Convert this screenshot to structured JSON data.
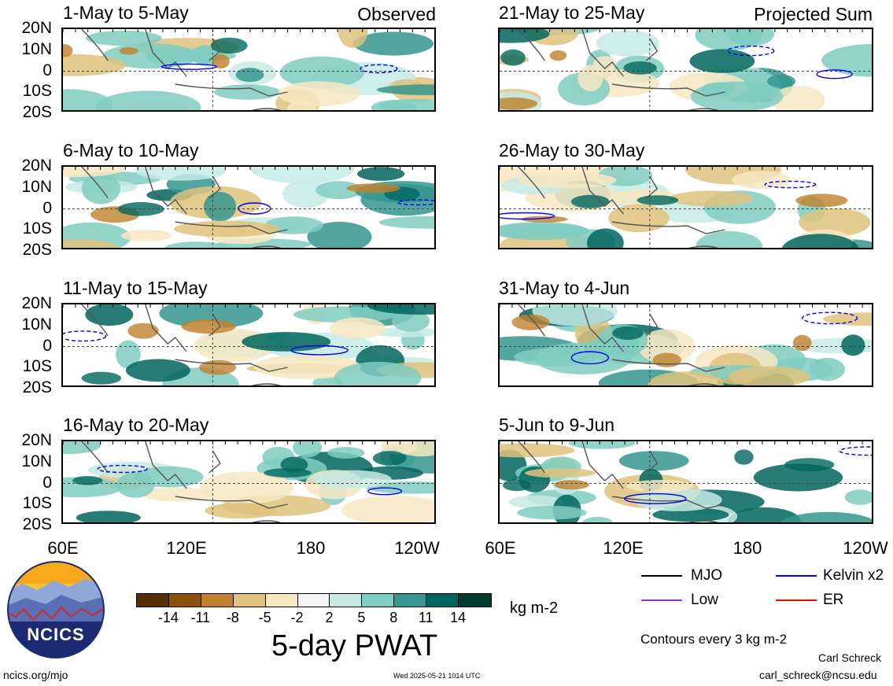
{
  "panels_left": [
    {
      "title": "1-May to 5-May",
      "tag": "Observed"
    },
    {
      "title": "6-May to 10-May",
      "tag": ""
    },
    {
      "title": "11-May to 15-May",
      "tag": ""
    },
    {
      "title": "16-May to 20-May",
      "tag": ""
    }
  ],
  "panels_right": [
    {
      "title": "21-May to 25-May",
      "tag": "Projected Sum"
    },
    {
      "title": "26-May to 30-May",
      "tag": ""
    },
    {
      "title": "31-May to 4-Jun",
      "tag": ""
    },
    {
      "title": "5-Jun to 9-Jun",
      "tag": ""
    }
  ],
  "lat_labels": [
    "20N",
    "10N",
    "0",
    "10S",
    "20S"
  ],
  "lon_labels": [
    "60E",
    "120E",
    "180",
    "120W"
  ],
  "colorbar": {
    "colors": [
      "#543005",
      "#8c510a",
      "#bf812d",
      "#dfc27d",
      "#f6e8c3",
      "#f5f5f5",
      "#c7eae5",
      "#80cdc1",
      "#35978f",
      "#01665e",
      "#003c30"
    ],
    "ticks": [
      "-14",
      "-11",
      "-8",
      "-5",
      "-2",
      "2",
      "5",
      "8",
      "11",
      "14"
    ],
    "unit": "kg m-2",
    "title": "5-day PWAT"
  },
  "legend": {
    "items": [
      {
        "label": "MJO",
        "color": "#000000"
      },
      {
        "label": "Kelvin x2",
        "color": "#0000ff"
      },
      {
        "label": "Low",
        "color": "#9933cc"
      },
      {
        "label": "ER",
        "color": "#ff0000"
      }
    ],
    "contour_note": "Contours every 3 kg m-2"
  },
  "footer": {
    "site": "ncics.org/mjo",
    "timestamp": "Wed 2025-05-21 1014 UTC",
    "author": "Carl Schreck",
    "email": "carl_schreck@ncsu.edu"
  },
  "logo": {
    "text": "NCICS",
    "icon": "ncics-logo-icon"
  }
}
